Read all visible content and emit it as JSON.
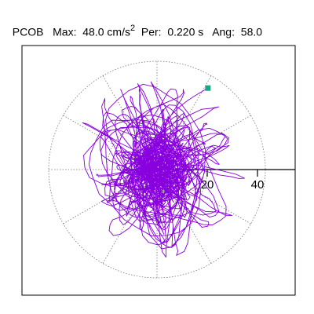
{
  "header": {
    "station": "PCOB",
    "max_label": "Max:",
    "max_value": "48.0 cm/s",
    "max_exponent": "2",
    "per_label": "Per:",
    "per_value": "0.220 s",
    "ang_label": "Ang:",
    "ang_value": "58.0"
  },
  "chart_data": {
    "type": "scatter",
    "title": "",
    "xlabel": "",
    "ylabel": "",
    "radial_ticks": [
      20,
      40
    ],
    "rlim": [
      0,
      48
    ],
    "angular_grid_deg": [
      0,
      30,
      60,
      90,
      120,
      150,
      180,
      210,
      240,
      270,
      300,
      330
    ],
    "grid": true,
    "trace_color": "#8800dd",
    "marker_color": "#11aa88",
    "max_point": {
      "r": 48.0,
      "angle_deg": 58.0
    }
  }
}
